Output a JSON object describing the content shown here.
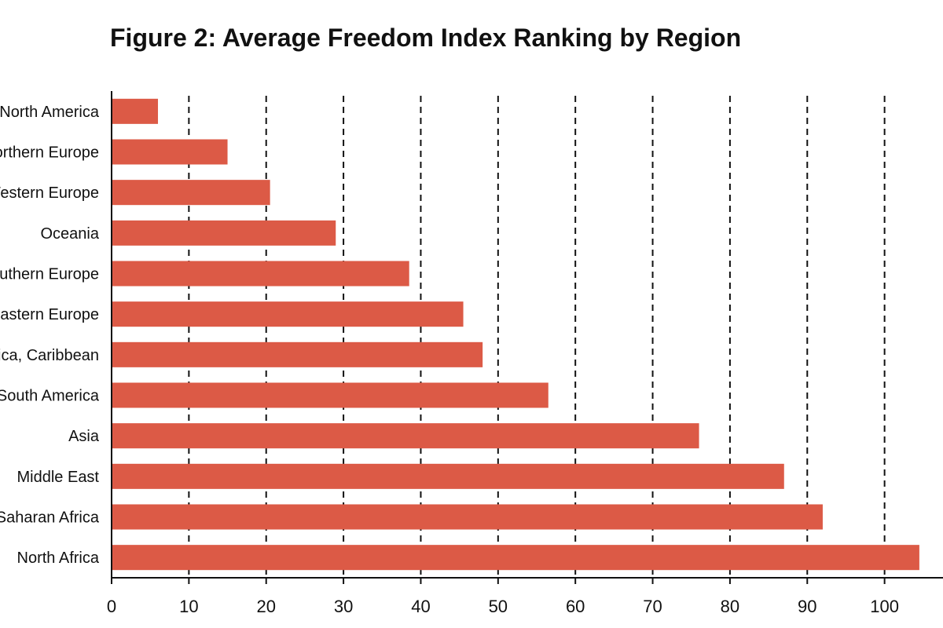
{
  "chart_data": {
    "type": "bar",
    "orientation": "horizontal",
    "title": "Figure 2: Average Freedom Index Ranking by Region",
    "xlabel": "",
    "ylabel": "",
    "categories": [
      "North America",
      "Northern Europe",
      "Western Europe",
      "Oceania",
      "Southern Europe",
      "Eastern Europe",
      "Central America, Caribbean",
      "South America",
      "Asia",
      "Middle East",
      "Sub-Saharan Africa",
      "North Africa"
    ],
    "values": [
      6,
      15,
      20.5,
      29,
      38.5,
      45.5,
      48,
      56.5,
      76,
      87,
      92,
      104.5
    ],
    "xlim": [
      0,
      110
    ],
    "xticks": [
      "0",
      "10",
      "20",
      "30",
      "40",
      "50",
      "60",
      "70",
      "80",
      "90",
      "100",
      "110"
    ],
    "grid": "vertical dashed",
    "bar_color": "#dc5a46",
    "legend": "none"
  }
}
